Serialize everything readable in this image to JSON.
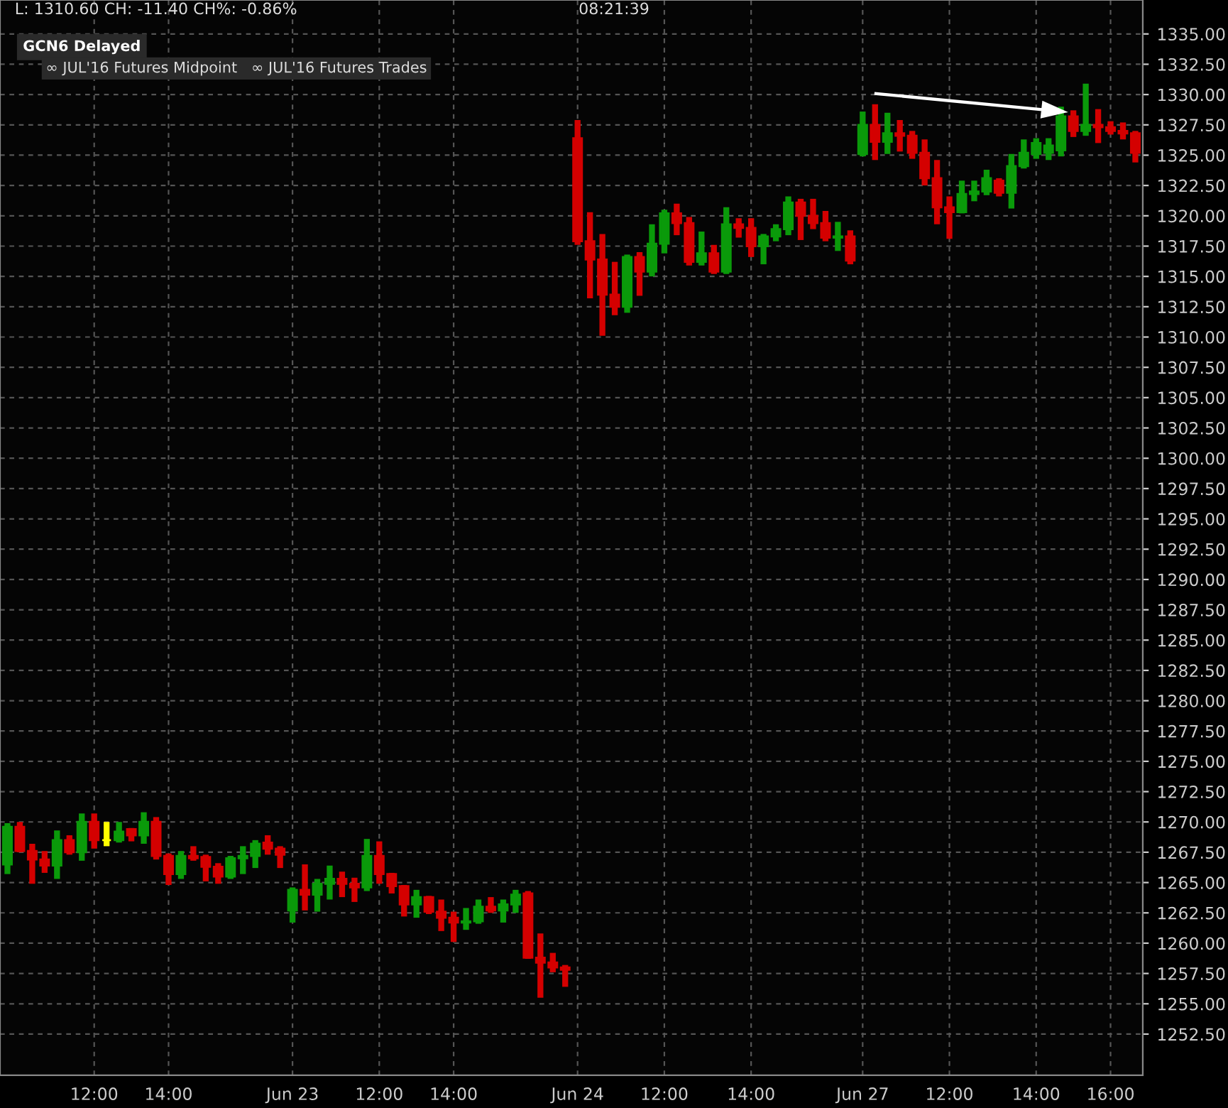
{
  "chart_data": {
    "type": "candlestick",
    "annotations": [
      "L: 1310.60 CH: -11.40 CH%: -0.86%",
      "08:21:39",
      "GCN6 Delayed",
      "∞ JUL'16 Futures Midpoint   ∞ JUL'16 Futures Trades"
    ],
    "categories": [
      null,
      null,
      null,
      null,
      null,
      null,
      null,
      "12:00",
      null,
      null,
      null,
      null,
      null,
      "14:00",
      null,
      null,
      null,
      null,
      null,
      null,
      null,
      null,
      null,
      "Jun 23",
      null,
      null,
      null,
      null,
      null,
      null,
      "12:00",
      null,
      null,
      null,
      null,
      null,
      "14:00",
      null,
      null,
      null,
      null,
      null,
      null,
      null,
      null,
      null,
      "Jun 24",
      null,
      null,
      null,
      null,
      null,
      null,
      "12:00",
      null,
      null,
      null,
      null,
      null,
      null,
      "14:00",
      null,
      null,
      null,
      null,
      null,
      null,
      null,
      null,
      "Jun 27",
      null,
      null,
      null,
      null,
      null,
      null,
      "12:00",
      null,
      null,
      null,
      null,
      null,
      null,
      "14:00",
      null,
      null,
      null,
      null,
      null,
      "16:00",
      null,
      null
    ],
    "ohlc": [
      [
        1266.5,
        1269.9,
        1265.7,
        1269.6
      ],
      [
        1269.6,
        1270.0,
        1267.5,
        1267.6
      ],
      [
        1267.6,
        1268.2,
        1264.9,
        1266.9
      ],
      [
        1266.9,
        1267.6,
        1265.8,
        1266.4
      ],
      [
        1266.4,
        1269.3,
        1265.3,
        1268.5
      ],
      [
        1268.5,
        1268.9,
        1267.3,
        1267.5
      ],
      [
        1267.5,
        1270.7,
        1266.8,
        1270.0
      ],
      [
        1270.0,
        1270.7,
        1267.8,
        1268.5
      ],
      [
        1268.5,
        1270.0,
        1268.0,
        1268.5
      ],
      [
        1268.5,
        1270.0,
        1268.3,
        1269.2
      ],
      [
        1269.4,
        1269.5,
        1268.4,
        1268.9
      ],
      [
        1268.9,
        1270.8,
        1268.2,
        1270.0
      ],
      [
        1270.0,
        1270.4,
        1266.9,
        1267.2
      ],
      [
        1267.2,
        1267.4,
        1264.8,
        1265.7
      ],
      [
        1265.7,
        1267.6,
        1265.3,
        1267.2
      ],
      [
        1267.2,
        1268.0,
        1266.8,
        1267.0
      ],
      [
        1267.1,
        1267.3,
        1265.1,
        1266.3
      ],
      [
        1266.3,
        1266.6,
        1264.9,
        1265.5
      ],
      [
        1265.5,
        1267.2,
        1265.3,
        1267.0
      ],
      [
        1267.0,
        1268.0,
        1265.7,
        1267.2
      ],
      [
        1267.2,
        1268.5,
        1266.2,
        1268.2
      ],
      [
        1268.3,
        1268.9,
        1267.3,
        1267.8
      ],
      [
        1267.8,
        1268.0,
        1266.2,
        1267.3
      ],
      [
        1262.7,
        1264.6,
        1261.7,
        1264.4
      ],
      [
        1264.4,
        1266.5,
        1262.7,
        1264.0
      ],
      [
        1264.0,
        1265.3,
        1262.6,
        1264.9
      ],
      [
        1264.9,
        1266.4,
        1263.6,
        1265.3
      ],
      [
        1265.3,
        1265.9,
        1263.8,
        1264.9
      ],
      [
        1264.9,
        1265.4,
        1263.4,
        1264.6
      ],
      [
        1264.6,
        1268.6,
        1264.3,
        1267.2
      ],
      [
        1267.2,
        1268.4,
        1264.9,
        1265.7
      ],
      [
        1265.7,
        1265.8,
        1264.1,
        1264.7
      ],
      [
        1264.7,
        1264.8,
        1262.2,
        1263.2
      ],
      [
        1263.2,
        1264.4,
        1262.1,
        1263.8
      ],
      [
        1263.8,
        1263.9,
        1262.4,
        1262.6
      ],
      [
        1262.6,
        1263.6,
        1261.0,
        1262.1
      ],
      [
        1262.1,
        1262.6,
        1260.1,
        1261.7
      ],
      [
        1261.7,
        1262.9,
        1261.1,
        1261.8
      ],
      [
        1261.8,
        1263.6,
        1261.6,
        1263.0
      ],
      [
        1263.0,
        1263.8,
        1262.5,
        1262.7
      ],
      [
        1262.7,
        1263.6,
        1261.7,
        1263.2
      ],
      [
        1263.2,
        1264.4,
        1262.5,
        1264.0
      ],
      [
        1264.1,
        1264.3,
        1258.7,
        1258.8
      ],
      [
        1258.8,
        1260.8,
        1255.5,
        1258.4
      ],
      [
        1258.4,
        1259.2,
        1257.6,
        1258.0
      ],
      [
        1258.0,
        1258.2,
        1256.4,
        1257.8
      ],
      [
        1326.4,
        1327.9,
        1317.6,
        1317.9
      ],
      [
        1317.9,
        1320.3,
        1313.2,
        1316.4
      ],
      [
        1316.4,
        1318.5,
        1310.1,
        1313.5
      ],
      [
        1313.5,
        1316.2,
        1311.8,
        1312.5
      ],
      [
        1312.5,
        1316.8,
        1312.0,
        1316.6
      ],
      [
        1316.6,
        1317.0,
        1313.4,
        1315.4
      ],
      [
        1315.4,
        1319.3,
        1315.0,
        1317.7
      ],
      [
        1317.7,
        1320.5,
        1316.9,
        1320.2
      ],
      [
        1320.2,
        1321.0,
        1318.4,
        1319.4
      ],
      [
        1319.4,
        1319.9,
        1315.9,
        1316.2
      ],
      [
        1316.2,
        1318.7,
        1315.9,
        1316.9
      ],
      [
        1316.9,
        1317.6,
        1315.2,
        1315.4
      ],
      [
        1315.4,
        1320.7,
        1315.2,
        1319.3
      ],
      [
        1319.3,
        1319.8,
        1318.2,
        1319.0
      ],
      [
        1319.0,
        1319.8,
        1316.6,
        1317.5
      ],
      [
        1317.5,
        1318.5,
        1316.0,
        1318.3
      ],
      [
        1318.3,
        1319.3,
        1317.9,
        1318.9
      ],
      [
        1318.9,
        1321.6,
        1318.4,
        1321.1
      ],
      [
        1321.1,
        1321.4,
        1318.0,
        1320.0
      ],
      [
        1320.0,
        1321.4,
        1318.9,
        1319.4
      ],
      [
        1319.4,
        1320.4,
        1317.9,
        1318.2
      ],
      [
        1318.2,
        1319.5,
        1317.1,
        1318.3
      ],
      [
        1318.3,
        1318.8,
        1316.0,
        1316.3
      ],
      [
        1325.1,
        1328.6,
        1324.9,
        1327.5
      ],
      [
        1327.5,
        1329.2,
        1324.6,
        1326.1
      ],
      [
        1326.1,
        1328.5,
        1325.1,
        1326.8
      ],
      [
        1326.8,
        1327.9,
        1325.3,
        1326.6
      ],
      [
        1326.6,
        1327.0,
        1324.7,
        1325.2
      ],
      [
        1325.2,
        1326.3,
        1322.5,
        1323.1
      ],
      [
        1323.1,
        1324.6,
        1319.3,
        1320.7
      ],
      [
        1320.7,
        1321.6,
        1318.1,
        1320.3
      ],
      [
        1320.3,
        1322.9,
        1320.2,
        1321.8
      ],
      [
        1321.8,
        1322.9,
        1321.2,
        1322.0
      ],
      [
        1322.0,
        1323.8,
        1321.7,
        1323.1
      ],
      [
        1322.9,
        1323.1,
        1321.6,
        1321.9
      ],
      [
        1321.9,
        1325.1,
        1320.6,
        1324.1
      ],
      [
        1324.1,
        1326.3,
        1323.9,
        1325.2
      ],
      [
        1325.1,
        1326.4,
        1324.7,
        1326.0
      ],
      [
        1325.2,
        1326.4,
        1324.6,
        1325.8
      ],
      [
        1325.4,
        1329.0,
        1324.9,
        1328.2
      ],
      [
        1328.2,
        1328.7,
        1326.5,
        1327.0
      ],
      [
        1327.0,
        1330.9,
        1326.6,
        1327.5
      ],
      [
        1327.5,
        1328.8,
        1326.0,
        1327.3
      ],
      [
        1327.3,
        1327.8,
        1326.7,
        1327.0
      ],
      [
        1327.0,
        1327.7,
        1326.3,
        1326.8
      ],
      [
        1326.8,
        1327.0,
        1324.4,
        1325.2
      ]
    ],
    "colors": [
      "#0a9a0a",
      "#d40000",
      "#d40000",
      "#d40000",
      "#0a9a0a",
      "#d40000",
      "#0a9a0a",
      "#d40000",
      "#ffff00",
      "#0a9a0a",
      "#d40000",
      "#0a9a0a",
      "#d40000",
      "#d40000",
      "#0a9a0a",
      "#d40000",
      "#d40000",
      "#d40000",
      "#0a9a0a",
      "#0a9a0a",
      "#0a9a0a",
      "#d40000",
      "#d40000",
      "#0a9a0a",
      "#d40000",
      "#0a9a0a",
      "#0a9a0a",
      "#d40000",
      "#d40000",
      "#0a9a0a",
      "#d40000",
      "#d40000",
      "#d40000",
      "#0a9a0a",
      "#d40000",
      "#d40000",
      "#d40000",
      "#0a9a0a",
      "#0a9a0a",
      "#d40000",
      "#0a9a0a",
      "#0a9a0a",
      "#d40000",
      "#d40000",
      "#d40000",
      "#d40000",
      "#d40000",
      "#d40000",
      "#d40000",
      "#d40000",
      "#0a9a0a",
      "#d40000",
      "#0a9a0a",
      "#0a9a0a",
      "#d40000",
      "#d40000",
      "#0a9a0a",
      "#d40000",
      "#0a9a0a",
      "#d40000",
      "#d40000",
      "#0a9a0a",
      "#0a9a0a",
      "#0a9a0a",
      "#d40000",
      "#d40000",
      "#d40000",
      "#0a9a0a",
      "#d40000",
      "#0a9a0a",
      "#d40000",
      "#0a9a0a",
      "#d40000",
      "#d40000",
      "#d40000",
      "#d40000",
      "#d40000",
      "#0a9a0a",
      "#0a9a0a",
      "#0a9a0a",
      "#d40000",
      "#0a9a0a",
      "#0a9a0a",
      "#0a9a0a",
      "#0a9a0a",
      "#0a9a0a",
      "#d40000",
      "#0a9a0a",
      "#d40000",
      "#d40000",
      "#d40000",
      "#d40000"
    ],
    "ylim": [
      1249.1,
      1337.8
    ],
    "yticks": [
      {
        "value": 1252.5,
        "label": "1252.50"
      },
      {
        "value": 1255,
        "label": "1255.00"
      },
      {
        "value": 1257.5,
        "label": "1257.50"
      },
      {
        "value": 1260,
        "label": "1260.00"
      },
      {
        "value": 1262.5,
        "label": "1262.50"
      },
      {
        "value": 1265,
        "label": "1265.00"
      },
      {
        "value": 1267.5,
        "label": "1267.50"
      },
      {
        "value": 1270,
        "label": "1270.00"
      },
      {
        "value": 1272.5,
        "label": "1272.50"
      },
      {
        "value": 1275,
        "label": "1275.00"
      },
      {
        "value": 1277.5,
        "label": "1277.50"
      },
      {
        "value": 1280,
        "label": "1280.00"
      },
      {
        "value": 1282.5,
        "label": "1282.50"
      },
      {
        "value": 1285,
        "label": "1285.00"
      },
      {
        "value": 1287.5,
        "label": "1287.50"
      },
      {
        "value": 1290,
        "label": "1290.00"
      },
      {
        "value": 1292.5,
        "label": "1292.50"
      },
      {
        "value": 1295,
        "label": "1295.00"
      },
      {
        "value": 1297.5,
        "label": "1297.50"
      },
      {
        "value": 1300,
        "label": "1300.00"
      },
      {
        "value": 1302.5,
        "label": "1302.50"
      },
      {
        "value": 1305,
        "label": "1305.00"
      },
      {
        "value": 1307.5,
        "label": "1307.50"
      },
      {
        "value": 1310,
        "label": "1310.00"
      },
      {
        "value": 1312.5,
        "label": "1312.50"
      },
      {
        "value": 1315,
        "label": "1315.00"
      },
      {
        "value": 1317.5,
        "label": "1317.50"
      },
      {
        "value": 1320,
        "label": "1320.00"
      },
      {
        "value": 1322.5,
        "label": "1322.50"
      },
      {
        "value": 1325,
        "label": "1325.00"
      },
      {
        "value": 1327.5,
        "label": "1327.50"
      },
      {
        "value": 1330,
        "label": "1330.00"
      },
      {
        "value": 1332.5,
        "label": "1332.50"
      },
      {
        "value": 1335,
        "label": "1335.00"
      }
    ],
    "grid": true
  }
}
